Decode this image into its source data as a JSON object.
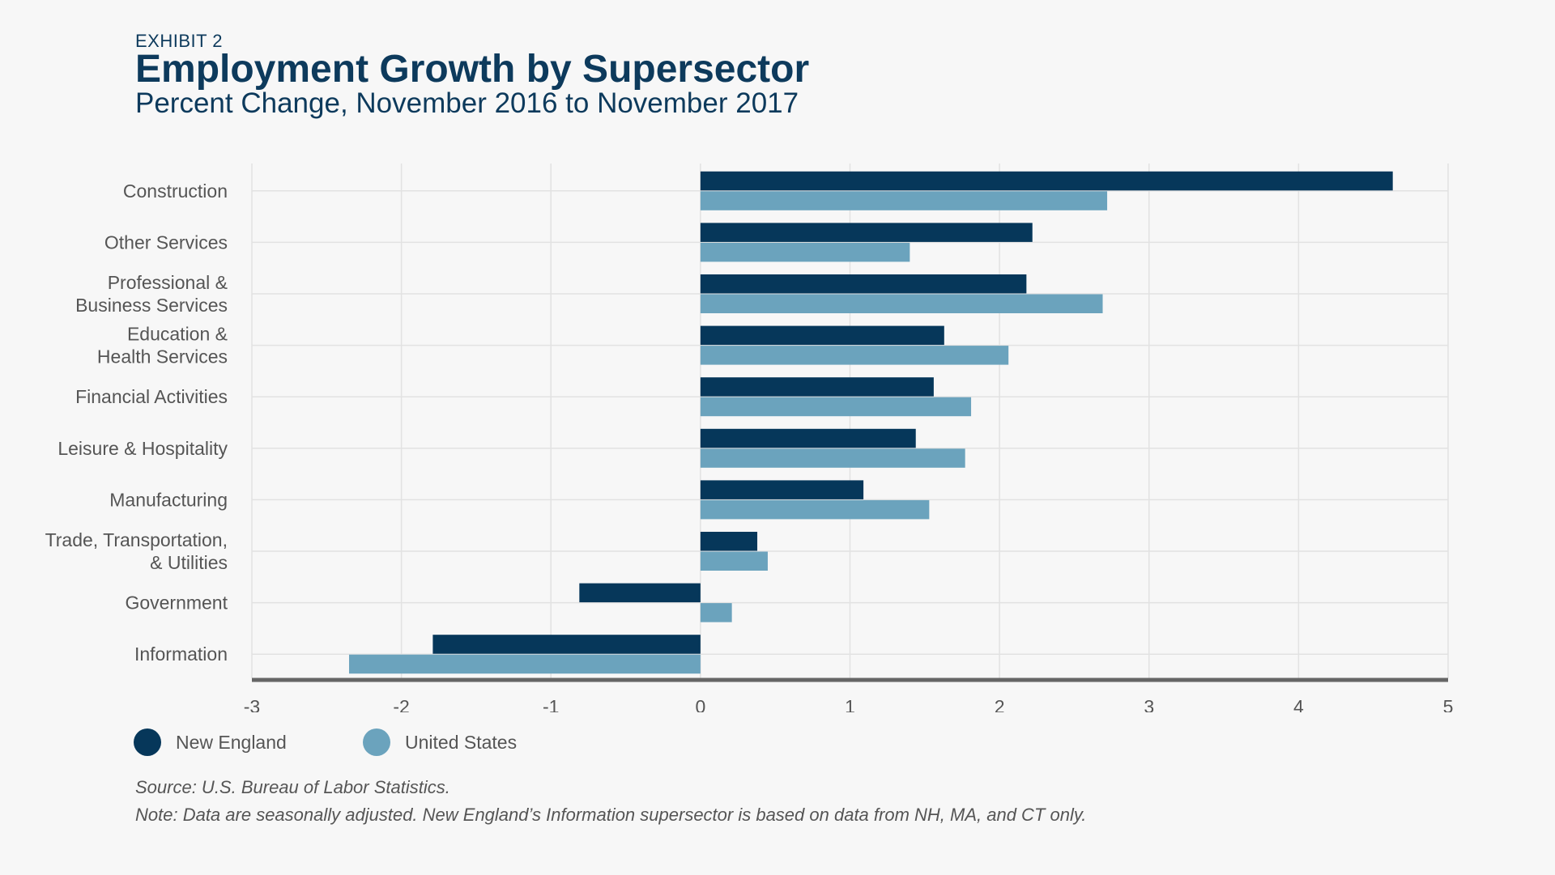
{
  "header": {
    "exhibit": "EXHIBIT 2",
    "title": "Employment Growth by Supersector",
    "subtitle": "Percent Change, November 2016 to November 2017"
  },
  "footer": {
    "source": "Source: U.S. Bureau of Labor Statistics.",
    "note": "Note: Data are seasonally adjusted. New England’s Information supersector is based on data from NH, MA, and CT only."
  },
  "chart_data": {
    "type": "bar",
    "orientation": "horizontal",
    "title": "Employment Growth by Supersector",
    "subtitle": "Percent Change, November 2016 to November 2017",
    "categories": [
      [
        "Construction"
      ],
      [
        "Other Services"
      ],
      [
        "Professional &",
        "Business Services"
      ],
      [
        "Education &",
        "Health Services"
      ],
      [
        "Financial Activities"
      ],
      [
        "Leisure & Hospitality"
      ],
      [
        "Manufacturing"
      ],
      [
        "Trade, Transportation,",
        "& Utilities"
      ],
      [
        "Government"
      ],
      [
        "Information"
      ]
    ],
    "series": [
      {
        "name": "New England",
        "color": "#06375a",
        "values": [
          4.63,
          2.22,
          2.18,
          1.63,
          1.56,
          1.44,
          1.09,
          0.38,
          -0.81,
          -1.79
        ]
      },
      {
        "name": "United States",
        "color": "#6ba3bd",
        "values": [
          2.72,
          1.4,
          2.69,
          2.06,
          1.81,
          1.77,
          1.53,
          0.45,
          0.21,
          -2.35
        ]
      }
    ],
    "xlim": [
      -3,
      5
    ],
    "xticks": [
      "-3",
      "-2",
      "-1",
      "0",
      "1",
      "2",
      "3",
      "4",
      "5"
    ],
    "grid": true,
    "legend_position": "bottom-left"
  }
}
